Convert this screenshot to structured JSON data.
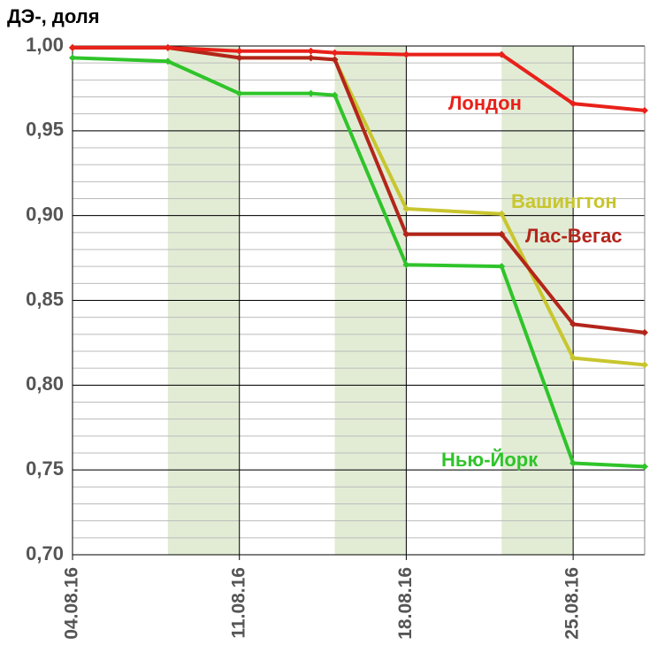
{
  "chart_data": {
    "type": "line",
    "title": "ДЭ-, доля",
    "x": [
      4,
      8,
      11,
      14,
      15,
      18,
      22,
      25,
      28
    ],
    "xlim": [
      4,
      28
    ],
    "xticks": [
      {
        "value": 4,
        "label": "04.08.16"
      },
      {
        "value": 11,
        "label": "11.08.16"
      },
      {
        "value": 18,
        "label": "18.08.16"
      },
      {
        "value": 25,
        "label": "25.08.16"
      }
    ],
    "shaded": [
      [
        8,
        11
      ],
      [
        15,
        18
      ],
      [
        22,
        25
      ]
    ],
    "shade_color": "#e2ecd5",
    "ylim": [
      0.7,
      1.0
    ],
    "yticks": [
      {
        "value": 0.7,
        "label": "0,70"
      },
      {
        "value": 0.75,
        "label": "0,75"
      },
      {
        "value": 0.8,
        "label": "0,80"
      },
      {
        "value": 0.85,
        "label": "0,85"
      },
      {
        "value": 0.9,
        "label": "0,90"
      },
      {
        "value": 0.95,
        "label": "0,95"
      },
      {
        "value": 1.0,
        "label": "1,00"
      }
    ],
    "minor_grid_step": 0.01,
    "grid": true,
    "series": [
      {
        "name": "Нью-Йорк",
        "color": "#2fc42a",
        "values": [
          0.993,
          0.991,
          0.972,
          0.972,
          0.971,
          0.871,
          0.87,
          0.754,
          0.752
        ]
      },
      {
        "name": "Вашингтон",
        "color": "#c8c62e",
        "values": [
          0.999,
          0.999,
          0.993,
          0.993,
          0.992,
          0.904,
          0.901,
          0.816,
          0.812
        ]
      },
      {
        "name": "Лас-Вегас",
        "color": "#b3251a",
        "values": [
          0.999,
          0.999,
          0.993,
          0.993,
          0.992,
          0.889,
          0.889,
          0.836,
          0.831
        ]
      },
      {
        "name": "Лондон",
        "color": "#e8211a",
        "values": [
          0.999,
          0.999,
          0.997,
          0.997,
          0.996,
          0.995,
          0.995,
          0.966,
          0.962
        ]
      }
    ]
  }
}
